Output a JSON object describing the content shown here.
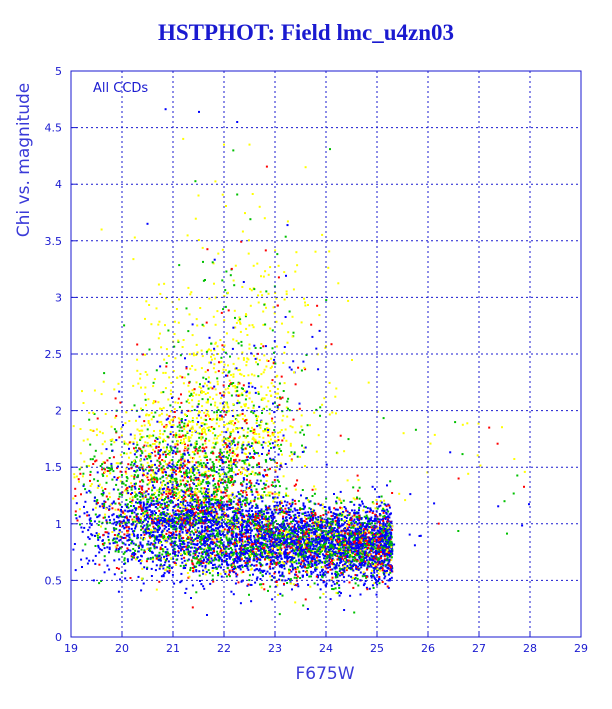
{
  "title": "HSTPHOT: Field lmc_u4zn03",
  "chart_data": {
    "type": "scatter",
    "title": "HSTPHOT: Field lmc_u4zn03",
    "xlabel": "F675W",
    "ylabel": "Chi vs. magnitude",
    "xlim": [
      19,
      29
    ],
    "ylim": [
      0,
      5
    ],
    "xticks": [
      "19",
      "20",
      "21",
      "22",
      "23",
      "24",
      "25",
      "26",
      "27",
      "28",
      "29"
    ],
    "yticks": [
      "0",
      "0.5",
      "1",
      "1.5",
      "2",
      "2.5",
      "3",
      "3.5",
      "4",
      "4.5",
      "5"
    ],
    "grid": true,
    "annotations": [
      "All CCDs"
    ],
    "series_colors": [
      "#0000ff",
      "#00c000",
      "#ff0000",
      "#ffff00"
    ],
    "points": [
      [
        21.2,
        4.4
      ],
      [
        22.0,
        4.35
      ],
      [
        22.5,
        4.35
      ],
      [
        20.5,
        3.65
      ],
      [
        19.6,
        3.6
      ],
      [
        22.7,
        3.8
      ],
      [
        21.5,
        3.9
      ],
      [
        22.8,
        3.7
      ],
      [
        27.2,
        1.85
      ],
      [
        26.6,
        1.4
      ],
      [
        27.5,
        1.2
      ],
      [
        23.6,
        4.15
      ]
    ]
  }
}
